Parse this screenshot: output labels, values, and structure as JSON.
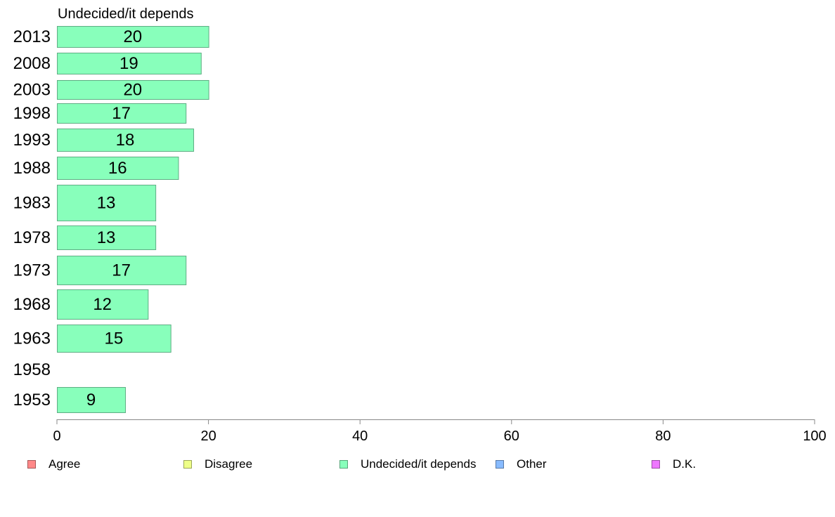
{
  "chart_data": {
    "type": "bar",
    "orientation": "horizontal",
    "title": "Undecided/it depends",
    "categories": [
      "2013",
      "2008",
      "2003",
      "1998",
      "1993",
      "1988",
      "1983",
      "1978",
      "1973",
      "1968",
      "1963",
      "1958",
      "1953"
    ],
    "values": [
      20,
      19,
      20,
      17,
      18,
      16,
      13,
      13,
      17,
      12,
      15,
      null,
      9
    ],
    "value_labels": [
      "20",
      "19",
      "20",
      "17",
      "18",
      "16",
      "13",
      "13",
      "17",
      "12",
      "15",
      "",
      "9"
    ],
    "xlim": [
      0,
      100
    ],
    "xticks": [
      0,
      20,
      40,
      60,
      80,
      100
    ],
    "xlabel": "",
    "ylabel": "",
    "grid": false,
    "bar_color": "#88ffbb",
    "legend": {
      "placement": "bottom",
      "entries": [
        {
          "label": "Agree",
          "color": "#ff8888"
        },
        {
          "label": "Disagree",
          "color": "#eeff88"
        },
        {
          "label": "Undecided/it depends",
          "color": "#88ffbb"
        },
        {
          "label": "Other",
          "color": "#88bbff"
        },
        {
          "label": "D.K.",
          "color": "#ee77ff"
        }
      ]
    }
  }
}
